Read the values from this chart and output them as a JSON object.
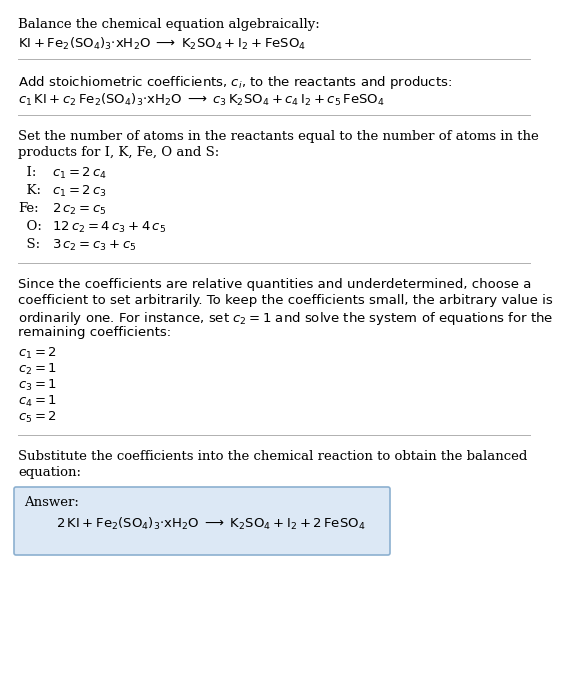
{
  "bg_color": "#ffffff",
  "text_color": "#000000",
  "font_size": 9.5,
  "title1": "Balance the chemical equation algebraically:",
  "eq1": "$\\mathrm{KI + Fe_2(SO_4)_3{\\cdot}xH_2O \\;\\longrightarrow\\; K_2SO_4 + I_2 + FeSO_4}$",
  "title2": "Add stoichiometric coefficients, $c_i$, to the reactants and products:",
  "eq2": "$c_1\\,\\mathrm{KI} + c_2\\,\\mathrm{Fe_2(SO_4)_3{\\cdot}xH_2O} \\;\\longrightarrow\\; c_3\\,\\mathrm{K_2SO_4} + c_4\\,\\mathrm{I_2} + c_5\\,\\mathrm{FeSO_4}$",
  "title3_line1": "Set the number of atoms in the reactants equal to the number of atoms in the",
  "title3_line2": "products for I, K, Fe, O and S:",
  "equations": [
    [
      "  I:",
      "$c_1 = 2\\,c_4$"
    ],
    [
      "  K:",
      "$c_1 = 2\\,c_3$"
    ],
    [
      "Fe:",
      "$2\\,c_2 = c_5$"
    ],
    [
      "  O:",
      "$12\\,c_2 = 4\\,c_3 + 4\\,c_5$"
    ],
    [
      "  S:",
      "$3\\,c_2 = c_3 + c_5$"
    ]
  ],
  "title4_lines": [
    "Since the coefficients are relative quantities and underdetermined, choose a",
    "coefficient to set arbitrarily. To keep the coefficients small, the arbitrary value is",
    "ordinarily one. For instance, set $c_2 = 1$ and solve the system of equations for the",
    "remaining coefficients:"
  ],
  "solution": [
    "$c_1 = 2$",
    "$c_2 = 1$",
    "$c_3 = 1$",
    "$c_4 = 1$",
    "$c_5 = 2$"
  ],
  "title5_line1": "Substitute the coefficients into the chemical reaction to obtain the balanced",
  "title5_line2": "equation:",
  "answer_label": "Answer:",
  "answer_eq": "$\\mathrm{2\\,KI + Fe_2(SO_4)_3{\\cdot}xH_2O \\;\\longrightarrow\\; K_2SO_4 + I_2 + 2\\,FeSO_4}$",
  "answer_box_color": "#dce8f5",
  "answer_box_border": "#8cb0d0",
  "line_color": "#b0b0b0"
}
